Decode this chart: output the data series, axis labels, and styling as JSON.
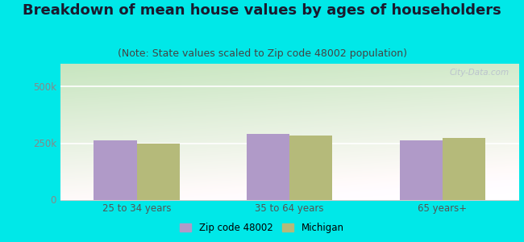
{
  "title": "Breakdown of mean house values by ages of householders",
  "subtitle": "(Note: State values scaled to Zip code 48002 population)",
  "categories": [
    "25 to 34 years",
    "35 to 64 years",
    "65 years+"
  ],
  "zip_values": [
    262000,
    290000,
    263000
  ],
  "state_values": [
    248000,
    283000,
    272000
  ],
  "zip_color": "#b09ac8",
  "state_color": "#b5ba7a",
  "ylim": [
    0,
    600000
  ],
  "yticks": [
    0,
    250000,
    500000
  ],
  "ytick_labels": [
    "0",
    "250k",
    "500k"
  ],
  "outer_background": "#00e8e8",
  "bar_width": 0.28,
  "legend_zip_label": "Zip code 48002",
  "legend_state_label": "Michigan",
  "watermark": "City-Data.com",
  "title_fontsize": 13,
  "subtitle_fontsize": 9,
  "axis_fontsize": 8.5
}
